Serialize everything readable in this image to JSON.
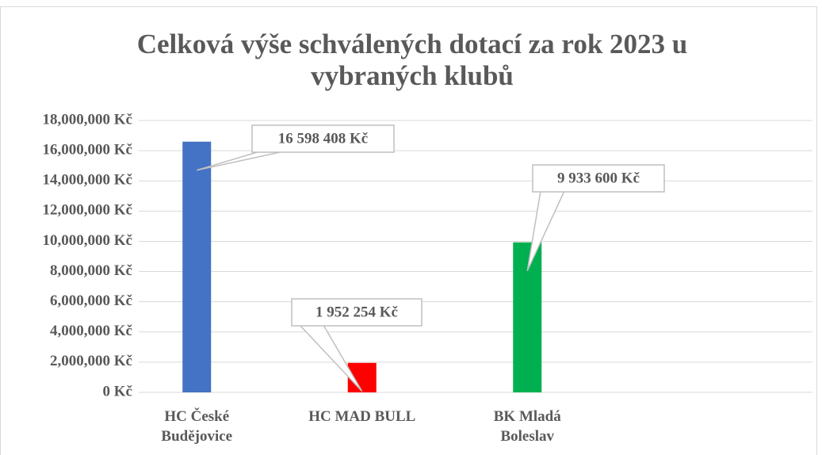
{
  "chart_data": {
    "type": "bar",
    "title": "Celková výše schválených dotací za rok 2023 u vybraných klubů",
    "categories": [
      "HC České Budějovice",
      "HC MAD BULL",
      "BK Mladá Boleslav"
    ],
    "values": [
      16598408,
      1952254,
      9933600
    ],
    "value_labels": [
      "16 598 408 Kč",
      "1 952 254 Kč",
      "9 933 600 Kč"
    ],
    "colors": [
      "#4472c4",
      "#ff0000",
      "#00b050"
    ],
    "ylim": [
      0,
      18000000
    ],
    "yticks": [
      {
        "value": 0,
        "label": "0 Kč"
      },
      {
        "value": 2000000,
        "label": "2,000,000 Kč"
      },
      {
        "value": 4000000,
        "label": "4,000,000 Kč"
      },
      {
        "value": 6000000,
        "label": "6,000,000 Kč"
      },
      {
        "value": 8000000,
        "label": "8,000,000 Kč"
      },
      {
        "value": 10000000,
        "label": "10,000,000 Kč"
      },
      {
        "value": 12000000,
        "label": "12,000,000 Kč"
      },
      {
        "value": 14000000,
        "label": "14,000,000 Kč"
      },
      {
        "value": 16000000,
        "label": "16,000,000 Kč"
      },
      {
        "value": 18000000,
        "label": "18,000,000 Kč"
      }
    ],
    "grid": true
  }
}
